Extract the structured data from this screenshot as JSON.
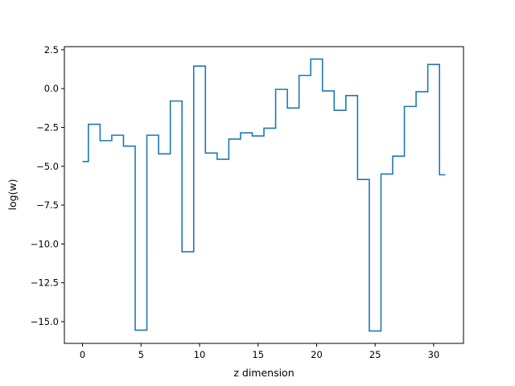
{
  "chart_data": {
    "type": "line",
    "drawstyle": "steps-mid",
    "xlabel": "z dimension",
    "ylabel": "log(w)",
    "xlim": [
      -1.55,
      32.55
    ],
    "ylim": [
      -16.4,
      2.7
    ],
    "xticks": [
      0,
      5,
      10,
      15,
      20,
      25,
      30
    ],
    "xtick_labels": [
      "0",
      "5",
      "10",
      "15",
      "20",
      "25",
      "30"
    ],
    "yticks": [
      2.5,
      0.0,
      -2.5,
      -5.0,
      -7.5,
      -10.0,
      -12.5,
      -15.0
    ],
    "ytick_labels": [
      "2.5",
      "0.0",
      "−2.5",
      "−5.0",
      "−7.5",
      "−10.0",
      "−12.5",
      "−15.0"
    ],
    "grid": false,
    "color": "#1f77b4",
    "series": [
      {
        "x": [
          0,
          1,
          2,
          3,
          4,
          5,
          6,
          7,
          8,
          9,
          10,
          11,
          12,
          13,
          14,
          15,
          16,
          17,
          18,
          19,
          20,
          21,
          22,
          23,
          24,
          25,
          26,
          27,
          28,
          29,
          30,
          31
        ],
        "values": [
          -4.7,
          -2.3,
          -3.35,
          -3.0,
          -3.7,
          -15.55,
          -3.0,
          -4.2,
          -0.8,
          -10.5,
          1.45,
          -4.15,
          -4.55,
          -3.25,
          -2.85,
          -3.05,
          -2.55,
          -0.05,
          -1.25,
          0.85,
          1.9,
          -0.15,
          -1.4,
          -0.45,
          -5.85,
          -15.6,
          -5.5,
          -4.35,
          -1.15,
          -0.2,
          1.55,
          -5.55
        ]
      }
    ]
  }
}
